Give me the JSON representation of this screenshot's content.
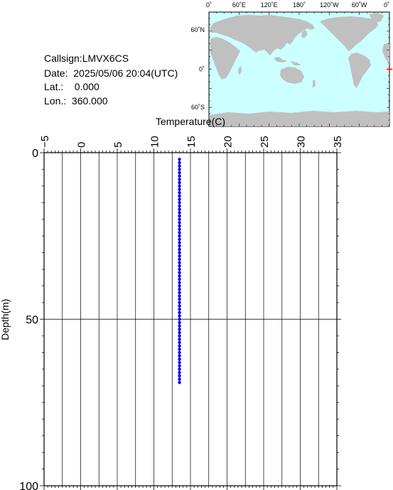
{
  "info": {
    "callsign": "Callsign:LMVX6CS",
    "date": "Date:  2025/05/06 20:04(UTC)",
    "lat": "Lat.:    0.000",
    "lon": "Lon.:  360.000"
  },
  "map": {
    "lon_labels": [
      "0˚",
      "60˚E",
      "120˚E",
      "180˚",
      "120˚W",
      "60˚W",
      "0˚"
    ],
    "lat_labels": [
      "60˚N",
      "0˚",
      "60˚S"
    ],
    "ocean_color": "#ccffff",
    "land_color": "#c0c0c0",
    "marker_color": "#ff0000",
    "marker": {
      "lat": 0.0,
      "lon": 360.0
    }
  },
  "chart_data": {
    "type": "scatter",
    "title": "",
    "xlabel": "Temperature(C)",
    "ylabel": "Depth(m)",
    "xlim": [
      -5,
      35
    ],
    "ylim": [
      0,
      100
    ],
    "y_inverted": true,
    "x_ticks": [
      -5,
      0,
      5,
      10,
      15,
      20,
      25,
      30,
      35
    ],
    "y_ticks": [
      0,
      50,
      100
    ],
    "grid": true,
    "color": "#0000ff",
    "series": [
      {
        "x": [
          13.5,
          13.5,
          13.5,
          13.5,
          13.5,
          13.5,
          13.5,
          13.5,
          13.5,
          13.5,
          13.5,
          13.5,
          13.5,
          13.5,
          13.5,
          13.5,
          13.5,
          13.5,
          13.5,
          13.5,
          13.5,
          13.5,
          13.5,
          13.5,
          13.5,
          13.5,
          13.5,
          13.5,
          13.5,
          13.5,
          13.5,
          13.5,
          13.5,
          13.5,
          13.5,
          13.5,
          13.5,
          13.5,
          13.5,
          13.5,
          13.5,
          13.5,
          13.5,
          13.5,
          13.5,
          13.5,
          13.5,
          13.5,
          13.5,
          13.5,
          13.5,
          13.5,
          13.5,
          13.5,
          13.5,
          13.5,
          13.5,
          13.5,
          13.5,
          13.5,
          13.5,
          13.5,
          13.5,
          13.5,
          13.5,
          13.5,
          13.5,
          13.5
        ],
        "y": [
          2,
          3,
          4,
          5,
          6,
          7,
          8,
          9,
          10,
          11,
          12,
          13,
          14,
          15,
          16,
          17,
          18,
          19,
          20,
          21,
          22,
          23,
          24,
          25,
          26,
          27,
          28,
          29,
          30,
          31,
          32,
          33,
          34,
          35,
          36,
          37,
          38,
          39,
          40,
          41,
          42,
          43,
          44,
          45,
          46,
          47,
          48,
          49,
          50,
          51,
          52,
          53,
          54,
          55,
          56,
          57,
          58,
          59,
          60,
          61,
          62,
          63,
          64,
          65,
          66,
          67,
          68,
          69
        ]
      }
    ]
  }
}
